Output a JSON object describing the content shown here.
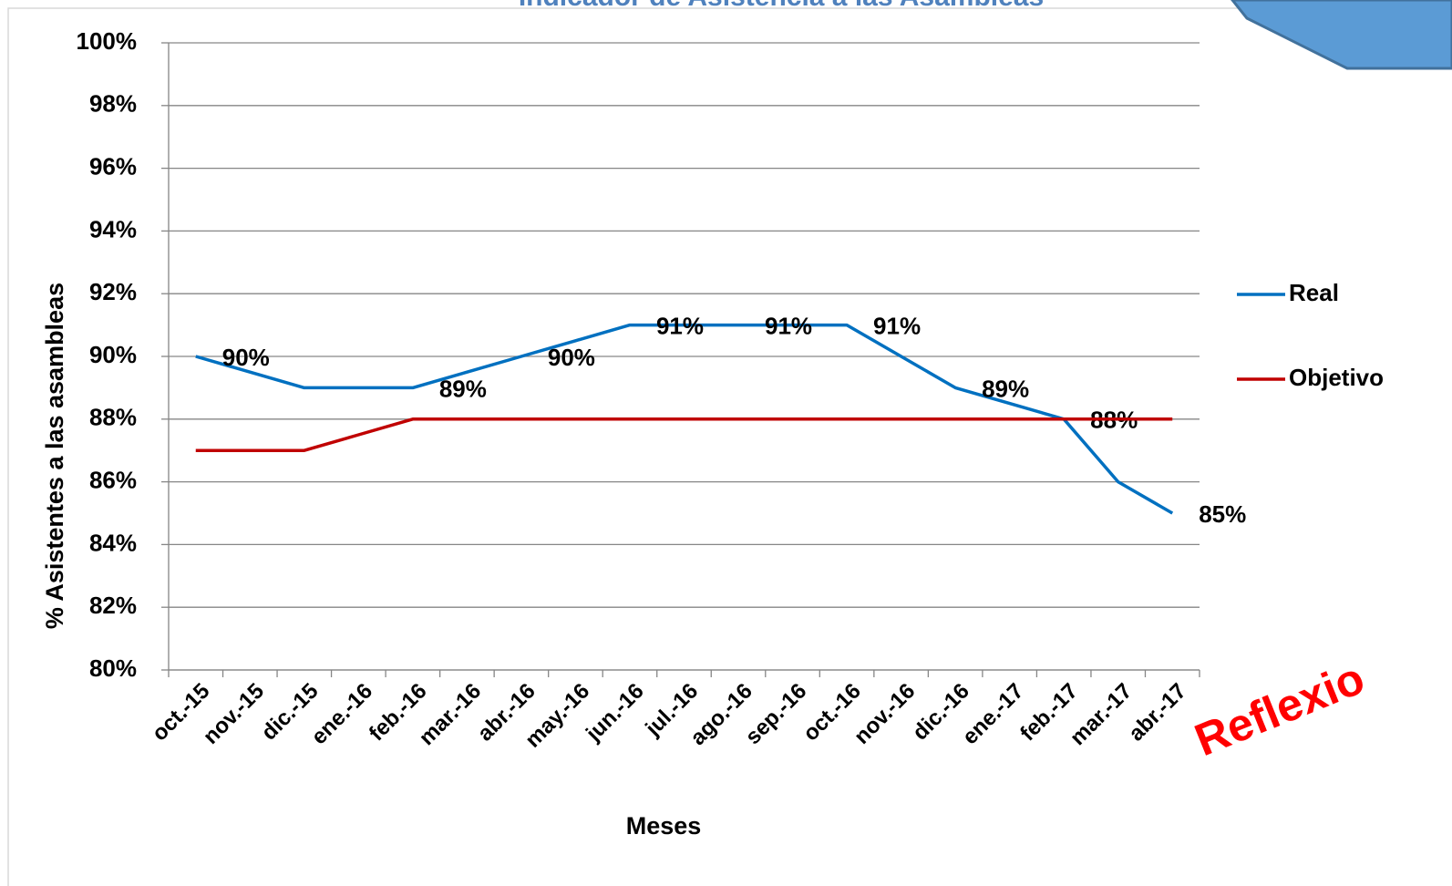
{
  "chart_data": {
    "type": "line",
    "title": "Indicador de Asistencia a las Asambleas",
    "x_label": "Meses",
    "y_label": "% Asistentes a las asambleas",
    "annotation": "Reflexio",
    "categories": [
      "oct.-15",
      "nov.-15",
      "dic.-15",
      "ene.-16",
      "feb.-16",
      "mar.-16",
      "abr.-16",
      "may.-16",
      "jun.-16",
      "jul.-16",
      "ago.-16",
      "sep.-16",
      "oct.-16",
      "nov.-16",
      "dic.-16",
      "ene.-17",
      "feb.-17",
      "mar.-17",
      "abr.-17"
    ],
    "series": [
      {
        "name": "Real",
        "color": "#0070c0",
        "values": [
          90,
          89.5,
          89,
          89,
          89,
          89.5,
          90,
          90.5,
          91,
          91,
          91,
          91,
          91,
          90,
          89,
          88.5,
          88,
          86,
          85
        ],
        "value_labels": [
          "90%",
          null,
          null,
          null,
          "89%",
          null,
          "90%",
          null,
          "91%",
          null,
          "91%",
          null,
          "91%",
          null,
          "89%",
          null,
          "88%",
          null,
          "85%"
        ]
      },
      {
        "name": "Objetivo",
        "color": "#c00000",
        "values": [
          87,
          87,
          87,
          87.5,
          88,
          88,
          88,
          88,
          88,
          88,
          88,
          88,
          88,
          88,
          88,
          88,
          88,
          88,
          88
        ]
      }
    ],
    "ylim": [
      80,
      100
    ],
    "yticks": [
      {
        "value": 80,
        "label": "80%"
      },
      {
        "value": 82,
        "label": "82%"
      },
      {
        "value": 84,
        "label": "84%"
      },
      {
        "value": 86,
        "label": "86%"
      },
      {
        "value": 88,
        "label": "88%"
      },
      {
        "value": 90,
        "label": "90%"
      },
      {
        "value": 92,
        "label": "92%"
      },
      {
        "value": 94,
        "label": "94%"
      },
      {
        "value": 96,
        "label": "96%"
      },
      {
        "value": 98,
        "label": "98%"
      },
      {
        "value": 100,
        "label": "100%"
      }
    ],
    "grid": true,
    "legend": "right"
  }
}
